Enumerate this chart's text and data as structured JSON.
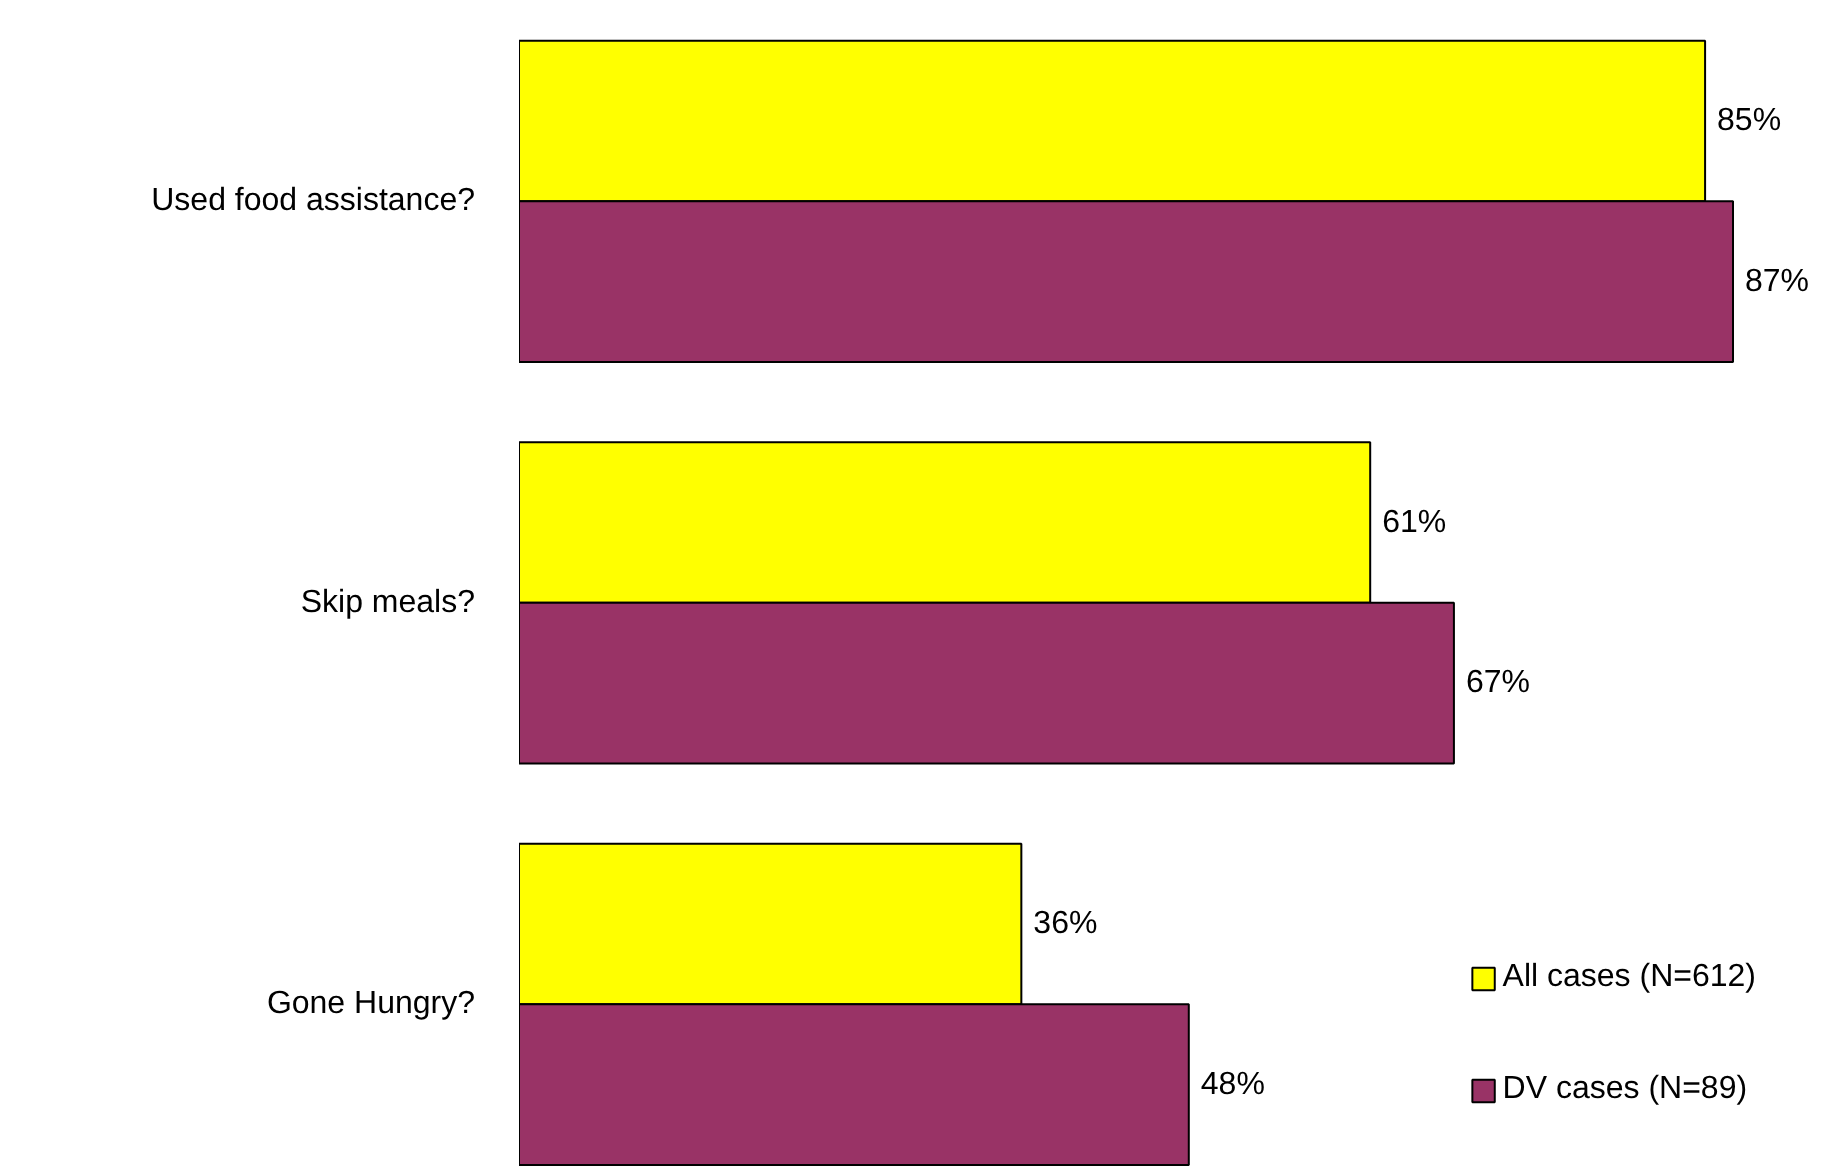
{
  "chart_data": {
    "type": "bar",
    "orientation": "horizontal",
    "categories": [
      "Used food assistance?",
      "Skip meals?",
      "Gone Hungry?"
    ],
    "series": [
      {
        "name": "All cases (N=612)",
        "color": "#ffff00",
        "values": [
          85,
          61,
          36
        ],
        "value_labels": [
          "85%",
          "61%",
          "36%"
        ]
      },
      {
        "name": "DV cases (N=89)",
        "color": "#993366",
        "values": [
          87,
          67,
          48
        ],
        "value_labels": [
          "87%",
          "67%",
          "48%"
        ]
      }
    ],
    "tick_labels": "y",
    "legend": "bottom right"
  }
}
